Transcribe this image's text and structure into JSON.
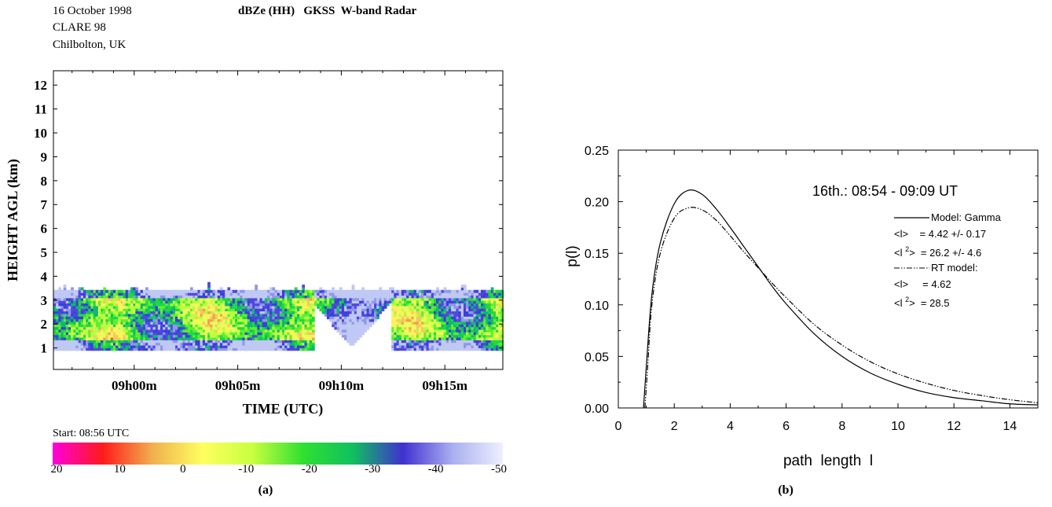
{
  "left_panel": {
    "header": {
      "date": "16 October 1998",
      "campaign": "CLARE 98",
      "site": "Chilbolton, UK",
      "title": "dBZe (HH)   GKSS  W-band Radar"
    },
    "start_label": "Start: 08:56 UTC",
    "panel_label": "(a)",
    "colorbar": {
      "stops": [
        "#ff00dd",
        "#ff1a1a",
        "#f0b050",
        "#ffff60",
        "#c8ff40",
        "#30e030",
        "#10c060",
        "#4030d0",
        "#aab0f0",
        "#eef0ff"
      ],
      "tick_labels": [
        "20",
        "10",
        "0",
        "-10",
        "-20",
        "-30",
        "-40",
        "-50"
      ]
    }
  },
  "right_panel": {
    "panel_label": "(b)",
    "legend": {
      "line1": "Model: Gamma",
      "line2": "<l>    = 4.42 +/- 0.17",
      "line3a": "<l ",
      "line3sup": "2",
      "line3b": ">  = 26.2 +/- 4.6",
      "line4": "RT model:",
      "line5": "<l>     = 4.62",
      "line6a": "<l ",
      "line6sup": "2",
      "line6b": ">  = 28.5"
    }
  },
  "chart_data": [
    {
      "type": "heatmap",
      "title": "dBZe (HH)   GKSS  W-band Radar",
      "xlabel": "TIME (UTC)",
      "ylabel": "HEIGHT AGL (km)",
      "x_tick_labels": [
        "09h00m",
        "09h05m",
        "09h10m",
        "09h15m"
      ],
      "x_ticks_minutes_after_0900": [
        0,
        5,
        10,
        15
      ],
      "xlim_minutes_after_0900": [
        -3.9,
        17.8
      ],
      "y_ticks": [
        1,
        2,
        3,
        4,
        5,
        6,
        7,
        8,
        9,
        10,
        11,
        12
      ],
      "ylim": [
        0.1,
        12.6
      ],
      "colorbar_range_dBZe": [
        20,
        -50
      ],
      "echo_base_km": 0.9,
      "echo_top_km": 3.4,
      "gap_minutes_after_0900": [
        8.6,
        12.3
      ]
    },
    {
      "type": "line",
      "title": "16th.: 08:54 - 09:09 UT",
      "xlabel": "path  length  l",
      "ylabel": "p(l)",
      "xlim": [
        0,
        15
      ],
      "ylim": [
        0,
        0.25
      ],
      "x_ticks": [
        0,
        2,
        4,
        6,
        8,
        10,
        12,
        14
      ],
      "y_ticks": [
        "0.00",
        "0.05",
        "0.10",
        "0.15",
        "0.20",
        "0.25"
      ],
      "series": [
        {
          "name": "Model: Gamma",
          "style": "solid",
          "x": [
            0.9,
            1.0,
            1.2,
            1.5,
            2.0,
            2.5,
            3.0,
            3.5,
            4.0,
            4.5,
            5.0,
            5.5,
            6.0,
            7.0,
            8.0,
            9.0,
            10.0,
            11.0,
            12.0,
            13.0,
            14.0,
            15.0
          ],
          "y": [
            0.0,
            0.04,
            0.11,
            0.16,
            0.198,
            0.211,
            0.207,
            0.193,
            0.175,
            0.156,
            0.137,
            0.118,
            0.101,
            0.072,
            0.05,
            0.034,
            0.023,
            0.015,
            0.01,
            0.007,
            0.004,
            0.003
          ]
        },
        {
          "name": "RT model:",
          "style": "dash-dot",
          "x": [
            0.95,
            1.05,
            1.2,
            1.5,
            2.0,
            2.5,
            3.0,
            3.5,
            4.0,
            4.5,
            5.0,
            5.5,
            6.0,
            7.0,
            8.0,
            9.0,
            10.0,
            11.0,
            12.0,
            13.0,
            14.0,
            15.0
          ],
          "y": [
            0.0,
            0.04,
            0.1,
            0.15,
            0.184,
            0.194,
            0.192,
            0.182,
            0.167,
            0.151,
            0.136,
            0.121,
            0.107,
            0.081,
            0.061,
            0.045,
            0.033,
            0.024,
            0.017,
            0.012,
            0.008,
            0.005
          ]
        }
      ]
    }
  ]
}
